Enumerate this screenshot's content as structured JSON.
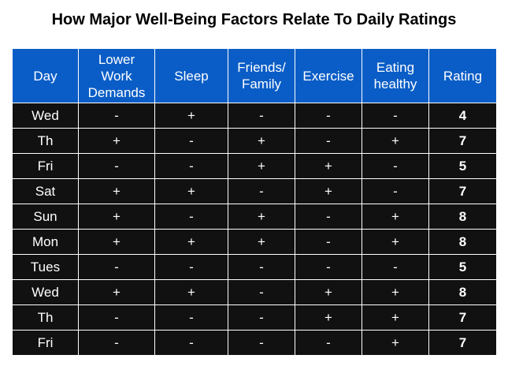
{
  "chart_data": {
    "type": "table",
    "title": "How Major Well-Being Factors Relate To Daily Ratings",
    "columns": [
      "Day",
      "Lower Work Demands",
      "Sleep",
      "Friends/ Family",
      "Exercise",
      "Eating healthy",
      "Rating"
    ],
    "rows": [
      [
        "Wed",
        "-",
        "+",
        "-",
        "-",
        "-",
        "4"
      ],
      [
        "Th",
        "+",
        "-",
        "+",
        "-",
        "+",
        "7"
      ],
      [
        "Fri",
        "-",
        "-",
        "+",
        "+",
        "-",
        "5"
      ],
      [
        "Sat",
        "+",
        "+",
        "-",
        "+",
        "-",
        "7"
      ],
      [
        "Sun",
        "+",
        "-",
        "+",
        "-",
        "+",
        "8"
      ],
      [
        "Mon",
        "+",
        "+",
        "+",
        "-",
        "+",
        "8"
      ],
      [
        "Tues",
        "-",
        "-",
        "-",
        "-",
        "-",
        "5"
      ],
      [
        "Wed",
        "+",
        "+",
        "-",
        "+",
        "+",
        "8"
      ],
      [
        "Th",
        "-",
        "-",
        "-",
        "+",
        "+",
        "7"
      ],
      [
        "Fri",
        "-",
        "-",
        "-",
        "-",
        "+",
        "7"
      ]
    ]
  },
  "colors": {
    "header_bg": "#0a5dc6",
    "cell_bg": "#111111",
    "text": "#ffffff"
  }
}
